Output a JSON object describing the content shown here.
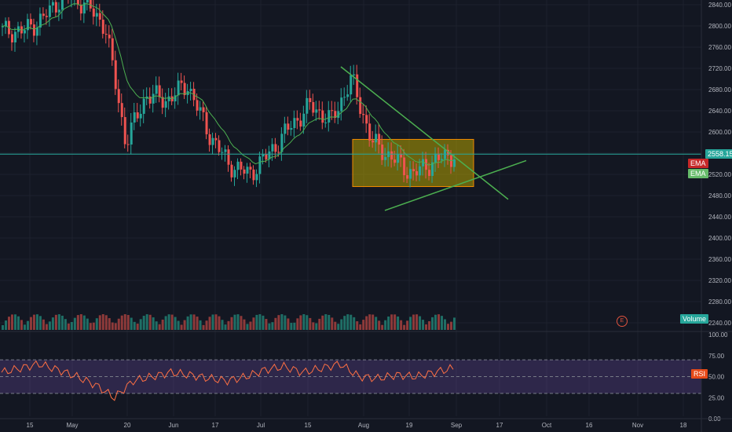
{
  "chart_data": [
    {
      "type": "candlestick",
      "title": "",
      "price_axis": {
        "ticks": [
          "2840.00",
          "2800.00",
          "2760.00",
          "2720.00",
          "2680.00",
          "2640.00",
          "2600.00",
          "2560.00",
          "2520.00",
          "2480.00",
          "2440.00",
          "2400.00",
          "2360.00",
          "2320.00",
          "2280.00",
          "2240.00"
        ],
        "range": [
          2222,
          2848
        ],
        "last_price": "2558.15"
      },
      "time_axis": {
        "ticks": [
          "15",
          "May",
          "20",
          "Jun",
          "17",
          "Jul",
          "15",
          "Aug",
          "19",
          "Sep",
          "17",
          "Oct",
          "16",
          "Nov",
          "18"
        ]
      },
      "ema_labels": [
        "EMA",
        "EMA"
      ],
      "volume_label": "Volume",
      "price_series_approx": [
        {
          "date": "Apr 8",
          "close": 2790
        },
        {
          "date": "Apr 15",
          "close": 2790
        },
        {
          "date": "Apr 22",
          "close": 2815
        },
        {
          "date": "Apr 29",
          "close": 2860
        },
        {
          "date": "May 6",
          "close": 2842
        },
        {
          "date": "May 13",
          "close": 2800
        },
        {
          "date": "May 17",
          "close": 2580
        },
        {
          "date": "May 20",
          "close": 2670
        },
        {
          "date": "May 27",
          "close": 2660
        },
        {
          "date": "Jun 3",
          "close": 2690
        },
        {
          "date": "Jun 10",
          "close": 2600
        },
        {
          "date": "Jun 17",
          "close": 2540
        },
        {
          "date": "Jun 24",
          "close": 2520
        },
        {
          "date": "Jul 1",
          "close": 2560
        },
        {
          "date": "Jul 8",
          "close": 2610
        },
        {
          "date": "Jul 15",
          "close": 2650
        },
        {
          "date": "Jul 22",
          "close": 2620
        },
        {
          "date": "Jul 26",
          "close": 2700
        },
        {
          "date": "Aug 2",
          "close": 2580
        },
        {
          "date": "Aug 9",
          "close": 2550
        },
        {
          "date": "Aug 16",
          "close": 2520
        },
        {
          "date": "Aug 23",
          "close": 2545
        },
        {
          "date": "Aug 30",
          "close": 2558
        }
      ],
      "annotations": {
        "range_box": {
          "price_top": 2586,
          "price_bottom": 2497,
          "from": "Jul 29",
          "to": "Aug 31"
        },
        "trendline_upper": {
          "from_price": 2723,
          "to_price": 2473
        },
        "trendline_lower": {
          "from_price": 2452,
          "to_price": 2546
        },
        "earnings_marker": "E"
      }
    },
    {
      "type": "line",
      "name": "RSI",
      "ticks": [
        "100.00",
        "75.00",
        "50.00",
        "25.00",
        "0.00"
      ],
      "range": [
        0,
        100
      ],
      "bands": [
        30,
        70
      ],
      "label": "RSI",
      "values_approx": [
        55,
        60,
        65,
        58,
        50,
        40,
        25,
        45,
        50,
        55,
        52,
        48,
        45,
        50,
        58,
        62,
        55,
        60,
        65,
        50,
        48,
        52,
        50,
        55,
        60
      ]
    }
  ]
}
